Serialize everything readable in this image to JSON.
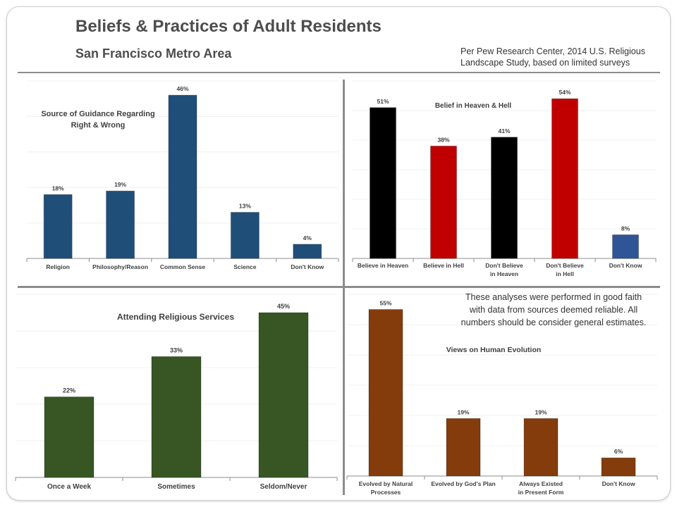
{
  "header": {
    "title": "Beliefs & Practices of Adult Residents",
    "subtitle": "San Francisco Metro Area",
    "source_line1": "Per Pew Research Center, 2014 U.S.  Religious",
    "source_line2": "Landscape  Study, based on limited surveys"
  },
  "note": {
    "line1": "These analyses  were performed in good faith",
    "line2": "with data from sources deemed reliable. All",
    "line3": "numbers should be consider general estimates."
  },
  "chart_data": [
    {
      "id": "guidance",
      "type": "bar",
      "title": [
        "Source of Guidance Regarding",
        "Right & Wrong"
      ],
      "categories": [
        [
          "Religion"
        ],
        [
          "Philosophy/Reason"
        ],
        [
          "Common Sense"
        ],
        [
          "Science"
        ],
        [
          "Don't Know"
        ]
      ],
      "values": [
        18,
        19,
        46,
        13,
        4
      ],
      "value_suffix": "%",
      "colors": [
        "#1f4e79",
        "#1f4e79",
        "#1f4e79",
        "#1f4e79",
        "#1f4e79"
      ],
      "ylim": [
        0,
        50
      ],
      "grid": true
    },
    {
      "id": "heaven",
      "type": "bar",
      "title": [
        "Belief in Heaven & Hell"
      ],
      "categories": [
        [
          "Believe in Heaven"
        ],
        [
          "Believe in Hell"
        ],
        [
          "Don't Believe",
          "in Heaven"
        ],
        [
          "Don't Believe",
          "in Hell"
        ],
        [
          "Don't Know"
        ]
      ],
      "values": [
        51,
        38,
        41,
        54,
        8
      ],
      "value_suffix": "%",
      "colors": [
        "#000000",
        "#c00000",
        "#000000",
        "#c00000",
        "#2f5597"
      ],
      "ylim": [
        0,
        60
      ],
      "grid": true
    },
    {
      "id": "services",
      "type": "bar",
      "title": [
        "Attending Religious Services"
      ],
      "categories": [
        [
          "Once a Week"
        ],
        [
          "Sometimes"
        ],
        [
          "Seldom/Never"
        ]
      ],
      "values": [
        22,
        33,
        45
      ],
      "value_suffix": "%",
      "colors": [
        "#375623",
        "#375623",
        "#375623"
      ],
      "ylim": [
        0,
        50
      ],
      "grid": true
    },
    {
      "id": "evolution",
      "type": "bar",
      "title": [
        "Views on Human Evolution"
      ],
      "categories": [
        [
          "Evolved by Natural",
          "Processes"
        ],
        [
          "Evolved by God's Plan"
        ],
        [
          "Always Existed",
          "in Present Form"
        ],
        [
          "Don't Know"
        ]
      ],
      "values": [
        55,
        19,
        19,
        6
      ],
      "value_suffix": "%",
      "colors": [
        "#843c0c",
        "#843c0c",
        "#843c0c",
        "#843c0c"
      ],
      "ylim": [
        0,
        60
      ],
      "grid": true
    }
  ]
}
